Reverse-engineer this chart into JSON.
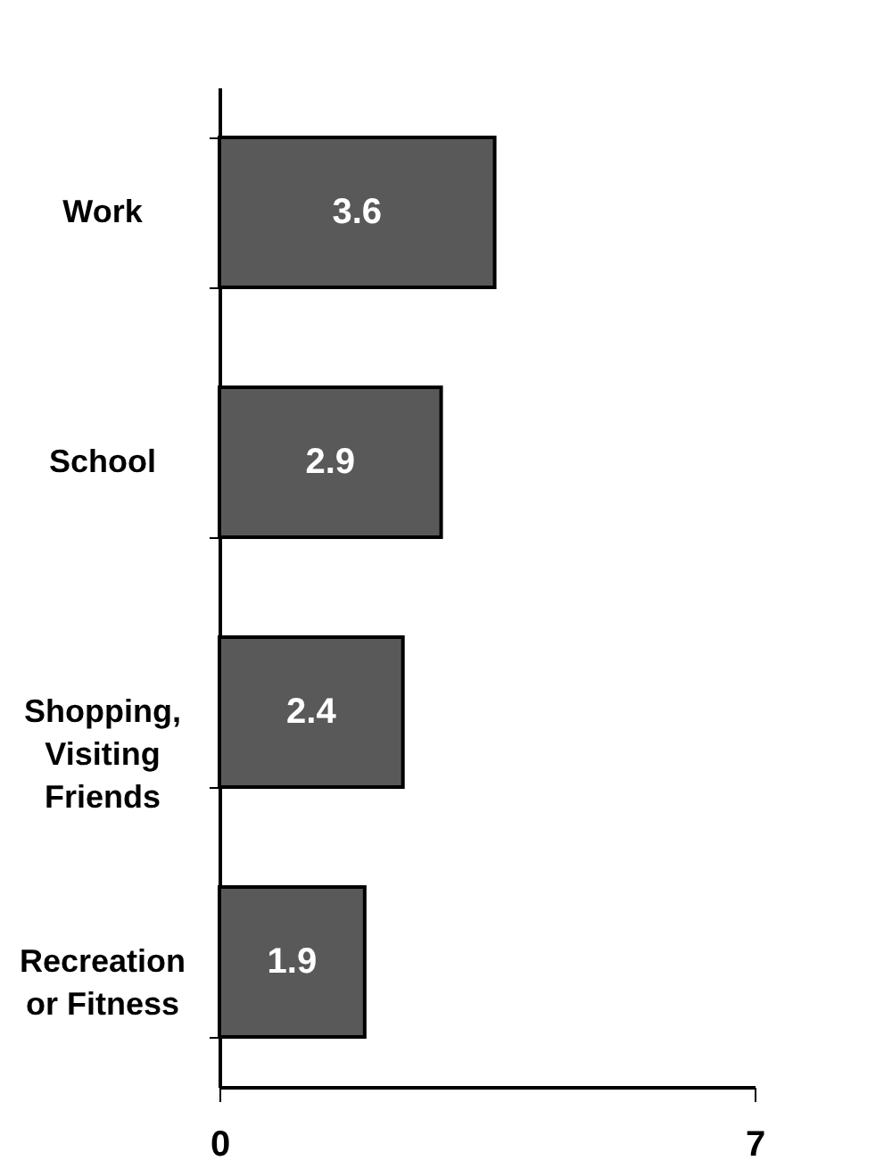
{
  "chart_data": {
    "type": "bar",
    "orientation": "horizontal",
    "categories": [
      "Work",
      "School",
      "Shopping,\nVisiting\nFriends",
      "Recreation\nor Fitness"
    ],
    "values": [
      3.6,
      2.9,
      2.4,
      1.9
    ],
    "color": "#595959",
    "xlim": [
      0,
      7
    ],
    "xticks": [
      0,
      7
    ],
    "data_labels": true
  }
}
